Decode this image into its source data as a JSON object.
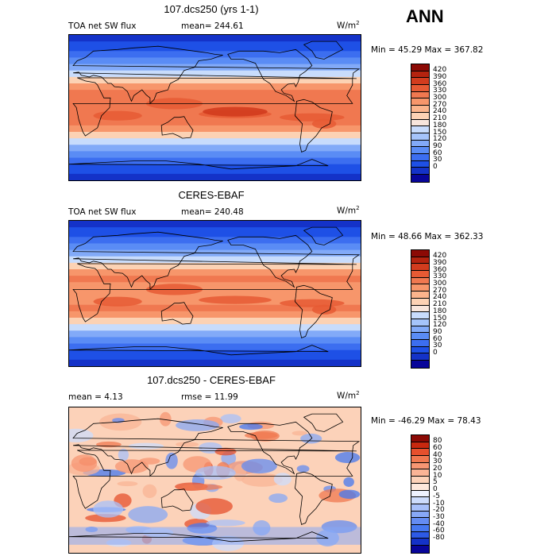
{
  "season": "ANN",
  "palettes": {
    "abs": [
      "#08059a",
      "#1432c8",
      "#1e50e6",
      "#3c6ef0",
      "#5a8cf5",
      "#82aaf8",
      "#a5c4fa",
      "#c8dcfc",
      "#f8e6dc",
      "#fcd2b4",
      "#fbb48c",
      "#f7966b",
      "#f07850",
      "#e65a34",
      "#d23c1e",
      "#b4230f",
      "#8c0a05"
    ],
    "diff": [
      "#08059a",
      "#1432c8",
      "#2d5ae6",
      "#4678f0",
      "#648cf2",
      "#87a8f6",
      "#a8c0fa",
      "#cddcfc",
      "#eef2fe",
      "#fde8dc",
      "#fcd2b9",
      "#fab496",
      "#f79673",
      "#f07850",
      "#e6502d",
      "#c8280f",
      "#8c0a05"
    ]
  },
  "panels": [
    {
      "id": "model",
      "title": "107.dcs250 (yrs 1-1)",
      "left_label": "TOA net SW flux",
      "stat_label": "mean= 244.61",
      "units_base": "W/m",
      "units_exp": "2",
      "minmax": "Min =  45.29 Max = 367.82",
      "palette": "abs",
      "colorbar_labels": [
        "420",
        "390",
        "360",
        "330",
        "300",
        "270",
        "240",
        "210",
        "180",
        "150",
        "120",
        "90",
        "60",
        "30",
        "0"
      ]
    },
    {
      "id": "obs",
      "title": "CERES-EBAF",
      "left_label": "TOA net SW flux",
      "stat_label": "mean= 240.48",
      "units_base": "W/m",
      "units_exp": "2",
      "minmax": "Min =  48.66 Max = 362.33",
      "palette": "abs",
      "colorbar_labels": [
        "420",
        "390",
        "360",
        "330",
        "300",
        "270",
        "240",
        "210",
        "180",
        "150",
        "120",
        "90",
        "60",
        "30",
        "0"
      ]
    },
    {
      "id": "diff",
      "title": "107.dcs250 - CERES-EBAF",
      "left_label": "mean =   4.13",
      "stat_label": "rmse =  11.99",
      "units_base": "W/m",
      "units_exp": "2",
      "minmax": "Min = -46.29 Max =  78.43",
      "palette": "diff",
      "colorbar_labels": [
        "80",
        "60",
        "40",
        "30",
        "20",
        "10",
        "5",
        "0",
        "-5",
        "-10",
        "-20",
        "-30",
        "-40",
        "-60",
        "-80"
      ]
    }
  ]
}
